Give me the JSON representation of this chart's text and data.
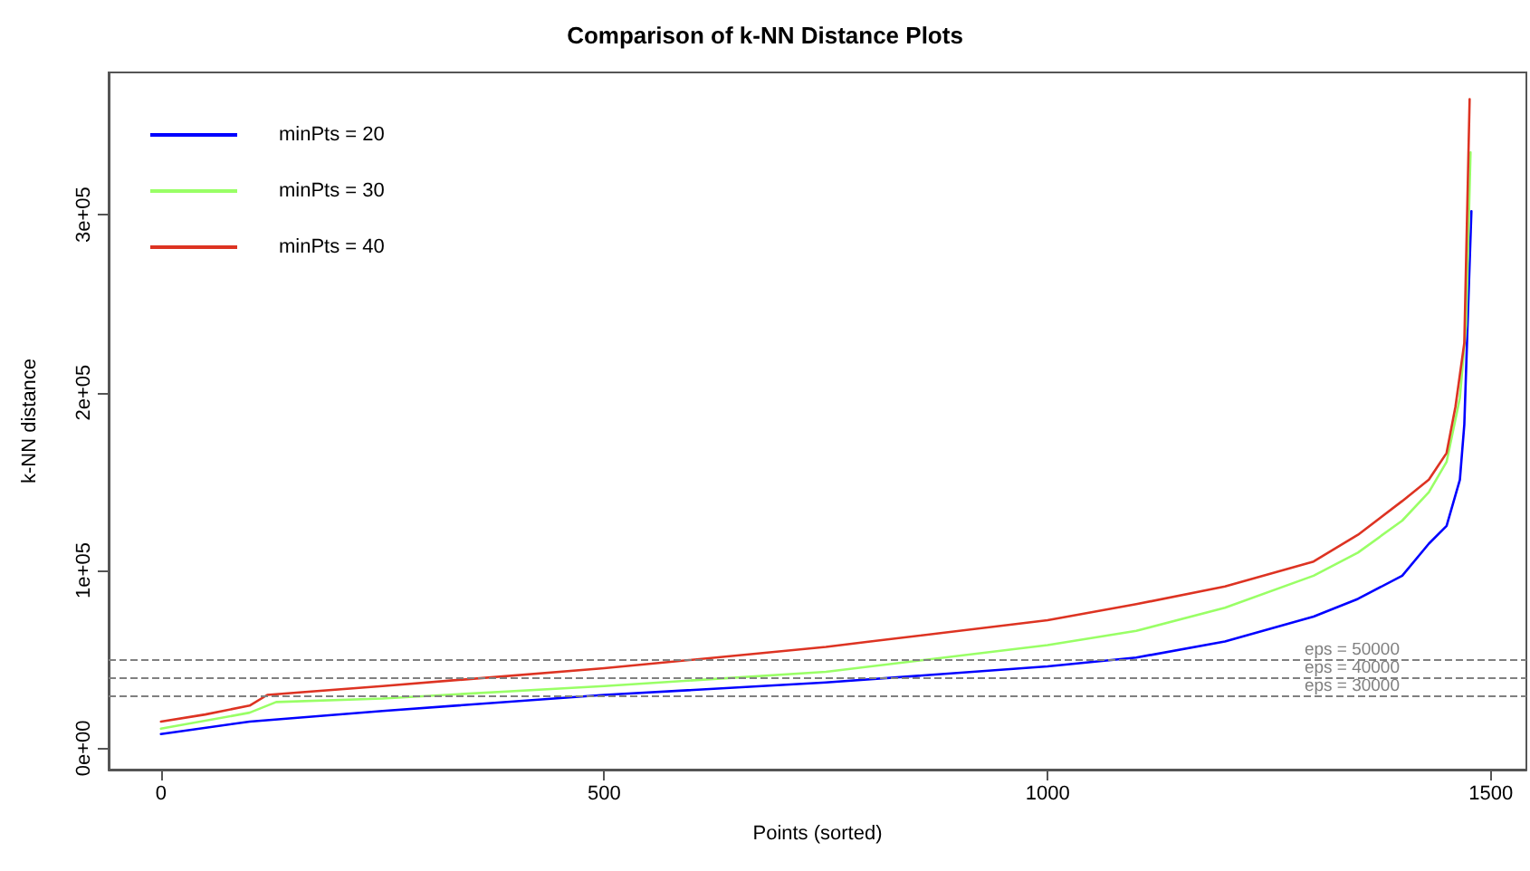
{
  "chart_data": {
    "type": "line",
    "title": "Comparison of k-NN Distance Plots",
    "xlabel": "Points (sorted)",
    "ylabel": "k-NN distance",
    "xlim": [
      -59,
      1540
    ],
    "xticks": [
      0,
      500,
      1000,
      1500
    ],
    "ylim": [
      -12000,
      380000
    ],
    "yticks": [
      {
        "value": 0,
        "label": "0e+00"
      },
      {
        "value": 100000,
        "label": "1e+05"
      },
      {
        "value": 200000,
        "label": "2e+05"
      },
      {
        "value": 300000,
        "label": "3e+05"
      }
    ],
    "grid": false,
    "legend": "top left",
    "marker": "none",
    "line_style": "solid",
    "series": [
      {
        "name": "minPts = 20",
        "color": "#0000ff",
        "x": [
          0,
          100,
          250,
          500,
          750,
          1000,
          1100,
          1200,
          1300,
          1350,
          1400,
          1430,
          1450,
          1465,
          1470,
          1475,
          1478
        ],
        "values": [
          8000,
          15000,
          21000,
          30000,
          37000,
          46000,
          51000,
          60000,
          74000,
          84000,
          97000,
          115000,
          125000,
          151000,
          182000,
          258000,
          302000
        ]
      },
      {
        "name": "minPts = 30",
        "color": "#99ff66",
        "x": [
          0,
          100,
          130,
          250,
          500,
          750,
          1000,
          1100,
          1200,
          1300,
          1350,
          1400,
          1430,
          1450,
          1465,
          1472,
          1477
        ],
        "values": [
          11000,
          20000,
          26000,
          28000,
          35000,
          43000,
          58000,
          66000,
          79000,
          97000,
          110000,
          128000,
          144000,
          161000,
          197000,
          238000,
          335000
        ]
      },
      {
        "name": "minPts = 40",
        "color": "#dd3322",
        "x": [
          0,
          50,
          100,
          120,
          250,
          500,
          750,
          800,
          1000,
          1100,
          1200,
          1300,
          1350,
          1400,
          1430,
          1450,
          1460,
          1470,
          1476
        ],
        "values": [
          15000,
          19000,
          24000,
          30000,
          35000,
          45000,
          57000,
          60000,
          72000,
          81000,
          91000,
          105000,
          120000,
          139000,
          151000,
          166000,
          192000,
          228000,
          365000
        ]
      }
    ],
    "ref_lines": [
      {
        "axis": "y",
        "value": 30000,
        "label": "eps = 30000",
        "color": "#808080",
        "line_style": "dashed"
      },
      {
        "axis": "y",
        "value": 40000,
        "label": "eps = 40000",
        "color": "#808080",
        "line_style": "dashed"
      },
      {
        "axis": "y",
        "value": 50000,
        "label": "eps = 50000",
        "color": "#808080",
        "line_style": "dashed"
      }
    ]
  }
}
